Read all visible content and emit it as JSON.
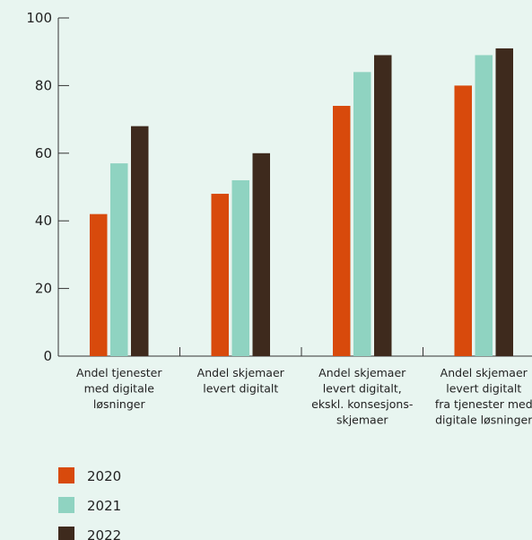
{
  "chart_data": {
    "type": "bar",
    "categories": [
      [
        "Andel tjenester",
        "med digitale",
        "løsninger"
      ],
      [
        "Andel skjemaer",
        "levert digitalt"
      ],
      [
        "Andel skjemaer",
        "levert digitalt,",
        "ekskl. konsesjons-",
        "skjemaer"
      ],
      [
        "Andel skjemaer",
        "levert digitalt",
        "fra tjenester med",
        "digitale løsninger"
      ]
    ],
    "series": [
      {
        "name": "2020",
        "color": "#d84a0c",
        "values": [
          42,
          48,
          74,
          80
        ]
      },
      {
        "name": "2021",
        "color": "#8fd3c1",
        "values": [
          57,
          52,
          84,
          89
        ]
      },
      {
        "name": "2022",
        "color": "#3e2a1d",
        "values": [
          68,
          60,
          89,
          91
        ]
      }
    ],
    "ylim": [
      0,
      100
    ],
    "yticks": [
      "0",
      "20",
      "40",
      "60",
      "80",
      "100"
    ],
    "grid": false,
    "legend": "bottom-left"
  }
}
